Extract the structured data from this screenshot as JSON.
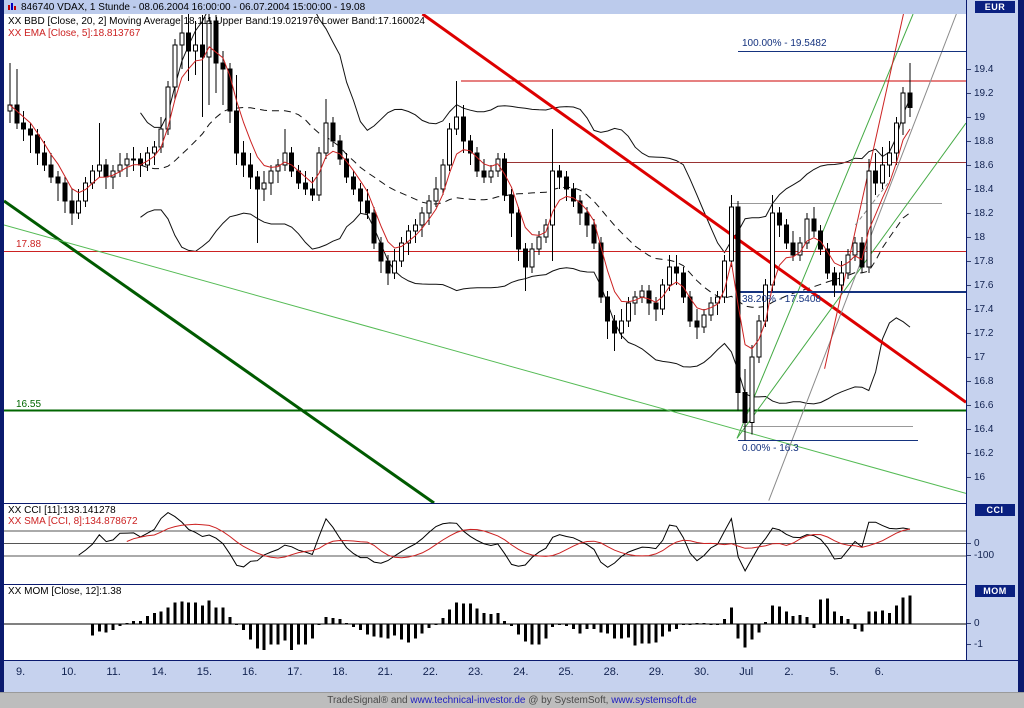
{
  "header": {
    "instrument_line": "846740 VDAX, 1 Stunde - 08.06.2004 16:00:00 - 06.07.2004 15:00:00 - 19.08",
    "bbd_line": "XX BBD [Close, 20, 2] Moving Average:18.111 Upper Band:19.021976 Lower Band:17.160024",
    "ema_line": "XX EMA [Close, 5]:18.813767",
    "currency_badge": "EUR"
  },
  "panels": {
    "cci": {
      "legend_main": "XX CCI [11]:133.141278",
      "legend_sma": "XX SMA [CCI, 8]:134.878672",
      "badge": "CCI",
      "axis": [
        {
          "text": "0",
          "value": 0
        },
        {
          "text": "-100",
          "value": -100
        }
      ],
      "gridlines": [
        100,
        0,
        -100
      ],
      "scale": {
        "min": -320,
        "max": 320
      },
      "params": {
        "cci_period": 11,
        "sma_period": 8
      }
    },
    "mom": {
      "legend": "XX MOM [Close, 12]:1.38",
      "badge": "MOM",
      "axis": [
        {
          "text": "0",
          "value": 0
        },
        {
          "text": "-1",
          "value": -1
        }
      ],
      "scale": {
        "min": -1.7,
        "max": 1.9
      },
      "params": {
        "period": 12
      }
    }
  },
  "chart_data": {
    "type": "candlestick",
    "title": "846740 VDAX, 1 Stunde",
    "period_label": "08.06.2004 16:00:00 - 06.07.2004 15:00:00",
    "last_price": 19.08,
    "y_axis": {
      "max": 19.86,
      "min": 15.78,
      "ticks": [
        19.4,
        19.2,
        19,
        18.8,
        18.6,
        18.4,
        18.2,
        18,
        17.8,
        17.6,
        17.4,
        17.2,
        17,
        16.8,
        16.6,
        16.4,
        16.2,
        16
      ]
    },
    "x_labels": [
      "9.",
      "10.",
      "11.",
      "14.",
      "15.",
      "16.",
      "17.",
      "18.",
      "21.",
      "22.",
      "23.",
      "24.",
      "25.",
      "28.",
      "29.",
      "30.",
      "Jul",
      "2.",
      "5.",
      "6."
    ],
    "candles": [
      [
        19.05,
        19.45,
        18.95,
        19.1
      ],
      [
        19.1,
        19.4,
        18.9,
        18.95
      ],
      [
        18.95,
        19.05,
        18.8,
        18.9
      ],
      [
        18.9,
        18.95,
        18.7,
        18.85
      ],
      [
        18.85,
        18.9,
        18.6,
        18.7
      ],
      [
        18.7,
        18.8,
        18.55,
        18.6
      ],
      [
        18.6,
        18.7,
        18.45,
        18.5
      ],
      [
        18.5,
        18.55,
        18.3,
        18.45
      ],
      [
        18.45,
        18.5,
        18.2,
        18.3
      ],
      [
        18.3,
        18.4,
        18.1,
        18.2
      ],
      [
        18.2,
        18.4,
        18.15,
        18.3
      ],
      [
        18.3,
        18.5,
        18.25,
        18.45
      ],
      [
        18.45,
        18.6,
        18.4,
        18.55
      ],
      [
        18.55,
        18.95,
        18.5,
        18.6
      ],
      [
        18.6,
        18.65,
        18.4,
        18.5
      ],
      [
        18.5,
        18.6,
        18.4,
        18.55
      ],
      [
        18.55,
        18.7,
        18.5,
        18.6
      ],
      [
        18.6,
        18.7,
        18.5,
        18.65
      ],
      [
        18.65,
        18.75,
        18.55,
        18.65
      ],
      [
        18.65,
        18.7,
        18.5,
        18.6
      ],
      [
        18.6,
        18.75,
        18.55,
        18.7
      ],
      [
        18.7,
        18.8,
        18.6,
        18.75
      ],
      [
        18.75,
        19.0,
        18.7,
        18.9
      ],
      [
        18.9,
        19.3,
        18.85,
        19.25
      ],
      [
        19.25,
        19.65,
        19.15,
        19.6
      ],
      [
        19.6,
        19.85,
        19.4,
        19.7
      ],
      [
        19.7,
        19.9,
        19.3,
        19.55
      ],
      [
        19.55,
        19.8,
        19.35,
        19.6
      ],
      [
        19.6,
        19.85,
        19.0,
        19.5
      ],
      [
        19.5,
        19.9,
        19.1,
        19.8
      ],
      [
        19.8,
        19.85,
        19.2,
        19.45
      ],
      [
        19.45,
        19.55,
        19.1,
        19.4
      ],
      [
        19.4,
        19.45,
        18.95,
        19.05
      ],
      [
        19.05,
        19.35,
        18.6,
        18.7
      ],
      [
        18.7,
        18.8,
        18.5,
        18.6
      ],
      [
        18.6,
        18.7,
        18.4,
        18.5
      ],
      [
        18.5,
        18.55,
        17.95,
        18.4
      ],
      [
        18.4,
        18.55,
        18.3,
        18.45
      ],
      [
        18.45,
        18.6,
        18.35,
        18.55
      ],
      [
        18.55,
        18.65,
        18.45,
        18.6
      ],
      [
        18.6,
        18.9,
        18.55,
        18.7
      ],
      [
        18.7,
        18.75,
        18.5,
        18.55
      ],
      [
        18.55,
        18.6,
        18.4,
        18.45
      ],
      [
        18.45,
        18.55,
        18.35,
        18.4
      ],
      [
        18.4,
        18.5,
        18.3,
        18.35
      ],
      [
        18.35,
        18.75,
        18.3,
        18.7
      ],
      [
        18.7,
        19.15,
        18.65,
        18.95
      ],
      [
        18.95,
        19.0,
        18.75,
        18.8
      ],
      [
        18.8,
        18.85,
        18.6,
        18.65
      ],
      [
        18.65,
        18.7,
        18.45,
        18.5
      ],
      [
        18.5,
        18.55,
        18.35,
        18.4
      ],
      [
        18.4,
        18.45,
        18.2,
        18.3
      ],
      [
        18.3,
        18.4,
        18.15,
        18.2
      ],
      [
        18.2,
        18.25,
        17.9,
        17.95
      ],
      [
        17.95,
        18.0,
        17.7,
        17.8
      ],
      [
        17.8,
        17.85,
        17.6,
        17.7
      ],
      [
        17.7,
        17.9,
        17.65,
        17.8
      ],
      [
        17.8,
        18.0,
        17.75,
        17.95
      ],
      [
        17.95,
        18.1,
        17.85,
        18.05
      ],
      [
        18.05,
        18.15,
        17.95,
        18.1
      ],
      [
        18.1,
        18.25,
        18.0,
        18.2
      ],
      [
        18.2,
        18.35,
        18.1,
        18.3
      ],
      [
        18.3,
        18.5,
        18.25,
        18.4
      ],
      [
        18.4,
        18.65,
        18.35,
        18.6
      ],
      [
        18.6,
        18.95,
        18.55,
        18.9
      ],
      [
        18.9,
        19.3,
        18.85,
        19.0
      ],
      [
        19.0,
        19.1,
        18.7,
        18.8
      ],
      [
        18.8,
        18.85,
        18.6,
        18.7
      ],
      [
        18.7,
        18.75,
        18.5,
        18.55
      ],
      [
        18.55,
        18.65,
        18.45,
        18.5
      ],
      [
        18.5,
        18.6,
        18.45,
        18.55
      ],
      [
        18.55,
        18.7,
        18.5,
        18.65
      ],
      [
        18.65,
        18.7,
        18.3,
        18.35
      ],
      [
        18.35,
        18.4,
        18.0,
        18.2
      ],
      [
        18.2,
        18.25,
        17.8,
        17.9
      ],
      [
        17.9,
        17.95,
        17.55,
        17.75
      ],
      [
        17.75,
        17.95,
        17.7,
        17.9
      ],
      [
        17.9,
        18.05,
        17.85,
        18.0
      ],
      [
        18.0,
        18.15,
        17.95,
        18.1
      ],
      [
        18.1,
        18.9,
        17.8,
        18.55
      ],
      [
        18.55,
        18.6,
        18.4,
        18.5
      ],
      [
        18.5,
        18.55,
        18.3,
        18.4
      ],
      [
        18.4,
        18.45,
        18.25,
        18.3
      ],
      [
        18.3,
        18.35,
        18.1,
        18.2
      ],
      [
        18.2,
        18.25,
        18.0,
        18.1
      ],
      [
        18.1,
        18.15,
        17.9,
        17.95
      ],
      [
        17.95,
        18.0,
        17.45,
        17.5
      ],
      [
        17.5,
        17.55,
        17.15,
        17.3
      ],
      [
        17.3,
        17.35,
        17.05,
        17.2
      ],
      [
        17.2,
        17.4,
        17.15,
        17.3
      ],
      [
        17.3,
        17.5,
        17.25,
        17.45
      ],
      [
        17.45,
        17.55,
        17.35,
        17.5
      ],
      [
        17.5,
        17.6,
        17.45,
        17.55
      ],
      [
        17.55,
        17.6,
        17.35,
        17.45
      ],
      [
        17.45,
        17.5,
        17.3,
        17.4
      ],
      [
        17.4,
        17.65,
        17.35,
        17.6
      ],
      [
        17.6,
        17.85,
        17.55,
        17.75
      ],
      [
        17.75,
        17.85,
        17.6,
        17.7
      ],
      [
        17.7,
        17.75,
        17.45,
        17.5
      ],
      [
        17.5,
        17.55,
        17.25,
        17.3
      ],
      [
        17.3,
        17.4,
        17.15,
        17.25
      ],
      [
        17.25,
        17.4,
        17.2,
        17.35
      ],
      [
        17.35,
        17.5,
        17.3,
        17.45
      ],
      [
        17.45,
        17.55,
        17.35,
        17.5
      ],
      [
        17.5,
        17.85,
        17.45,
        17.8
      ],
      [
        17.8,
        18.35,
        17.75,
        18.25
      ],
      [
        18.25,
        18.3,
        16.55,
        16.7
      ],
      [
        16.7,
        16.9,
        16.3,
        16.45
      ],
      [
        16.45,
        17.1,
        16.35,
        17.0
      ],
      [
        17.0,
        17.35,
        16.95,
        17.3
      ],
      [
        17.3,
        17.65,
        17.25,
        17.6
      ],
      [
        17.6,
        18.35,
        17.55,
        18.2
      ],
      [
        18.2,
        18.25,
        18.0,
        18.1
      ],
      [
        18.1,
        18.15,
        17.9,
        17.95
      ],
      [
        17.95,
        18.05,
        17.8,
        17.85
      ],
      [
        17.85,
        18.0,
        17.8,
        17.95
      ],
      [
        17.95,
        18.2,
        17.9,
        18.15
      ],
      [
        18.15,
        18.25,
        18.0,
        18.05
      ],
      [
        18.05,
        18.1,
        17.85,
        17.9
      ],
      [
        17.9,
        17.95,
        17.65,
        17.7
      ],
      [
        17.7,
        17.75,
        17.5,
        17.6
      ],
      [
        17.6,
        17.8,
        17.55,
        17.7
      ],
      [
        17.7,
        17.9,
        17.65,
        17.85
      ],
      [
        17.85,
        18.0,
        17.8,
        17.95
      ],
      [
        17.95,
        18.0,
        17.7,
        17.75
      ],
      [
        17.75,
        18.65,
        17.7,
        18.55
      ],
      [
        18.55,
        18.7,
        18.35,
        18.45
      ],
      [
        18.45,
        18.75,
        18.4,
        18.6
      ],
      [
        18.6,
        18.8,
        18.5,
        18.7
      ],
      [
        18.7,
        19.0,
        18.6,
        18.95
      ],
      [
        18.95,
        19.25,
        18.85,
        19.2
      ],
      [
        19.2,
        19.45,
        19.0,
        19.08
      ]
    ],
    "indicators": {
      "bollinger": {
        "period": 20,
        "stddev": 2,
        "moving_average": 18.111,
        "upper_band": 19.021976,
        "lower_band": 17.160024
      },
      "ema": {
        "period": 5,
        "value": 18.813767
      },
      "cci": {
        "period": 11,
        "value": 133.141278,
        "sma_period": 8,
        "sma_value": 134.878672
      },
      "momentum": {
        "period": 12,
        "value": 1.38
      }
    },
    "hlines": [
      {
        "price": 17.88,
        "x1": 0,
        "x2": 1,
        "color": "#cc2222",
        "width": 1
      },
      {
        "price": 16.55,
        "x1": 0,
        "x2": 1,
        "color": "#006600",
        "width": 2
      },
      {
        "price": 19.3,
        "x1": 0.475,
        "x2": 1,
        "color": "#cc0000",
        "width": 1
      },
      {
        "price": 18.62,
        "x1": 0.52,
        "x2": 1,
        "color": "#993333",
        "width": 1
      },
      {
        "price": 18.28,
        "x1": 0.755,
        "x2": 0.975,
        "color": "#999999",
        "width": 1
      },
      {
        "price": 16.42,
        "x1": 0.768,
        "x2": 0.945,
        "color": "#999999",
        "width": 1
      }
    ],
    "trendlines": [
      {
        "x1": 0,
        "p1": 18.3,
        "x2": 0.447,
        "p2": 15.78,
        "color": "#005a00",
        "width": 3
      },
      {
        "x1": 0,
        "p1": 18.1,
        "x2": 1,
        "p2": 15.86,
        "color": "#55bb55",
        "width": 1
      },
      {
        "x1": 0.435,
        "p1": 19.86,
        "x2": 1,
        "p2": 16.62,
        "color": "#dd0000",
        "width": 3
      },
      {
        "x1": 0.762,
        "p1": 16.32,
        "x2": 1,
        "p2": 18.95,
        "color": "#44aa44",
        "width": 1
      },
      {
        "x1": 0.762,
        "p1": 16.32,
        "x2": 0.945,
        "p2": 19.86,
        "color": "#44aa44",
        "width": 1
      },
      {
        "x1": 0.795,
        "p1": 15.8,
        "x2": 0.99,
        "p2": 19.86,
        "color": "#8a8a8a",
        "width": 1
      },
      {
        "x1": 0.853,
        "p1": 16.9,
        "x2": 0.935,
        "p2": 19.86,
        "color": "#cc2222",
        "width": 1
      },
      {
        "x1": 0.885,
        "p1": 18.1,
        "x2": 0.922,
        "p2": 18.48,
        "color": "#888888",
        "width": 1,
        "dash": "4 3"
      }
    ],
    "fibonacci": {
      "color": "#15337f",
      "x1": 0.763,
      "levels": [
        {
          "label": "100.00% - 19.5482",
          "value": 19.5482,
          "width": 1,
          "label_below": false,
          "x2": 1
        },
        {
          "label": "38.20% - 17.5408",
          "value": 17.5408,
          "width": 2,
          "label_below": true,
          "x2": 1
        },
        {
          "label": "0.00% - 16.3",
          "value": 16.3,
          "width": 1,
          "label_below": true,
          "x2": 0.95
        }
      ]
    },
    "price_labels": [
      {
        "text": "17.88",
        "value": 17.88,
        "color": "#cc2222"
      },
      {
        "text": "16.55",
        "value": 16.55,
        "color": "#006600"
      }
    ]
  },
  "footer": {
    "segments": [
      {
        "text": "TradeSignal® and ",
        "link": false
      },
      {
        "text": "www.technical-investor.de",
        "link": true
      },
      {
        "text": " @ by SystemSoft, ",
        "link": false
      },
      {
        "text": "www.systemsoft.de",
        "link": true
      }
    ]
  },
  "colors": {
    "frame": "#0a1a6e",
    "axis_bg": "#c6d2ee",
    "badge_bg": "#0a2080",
    "candle": "#000000",
    "ema": "#cc2222",
    "band": "#111111",
    "fib": "#15337f",
    "status_bg": "#bdbdbd",
    "link": "#2020c0"
  }
}
